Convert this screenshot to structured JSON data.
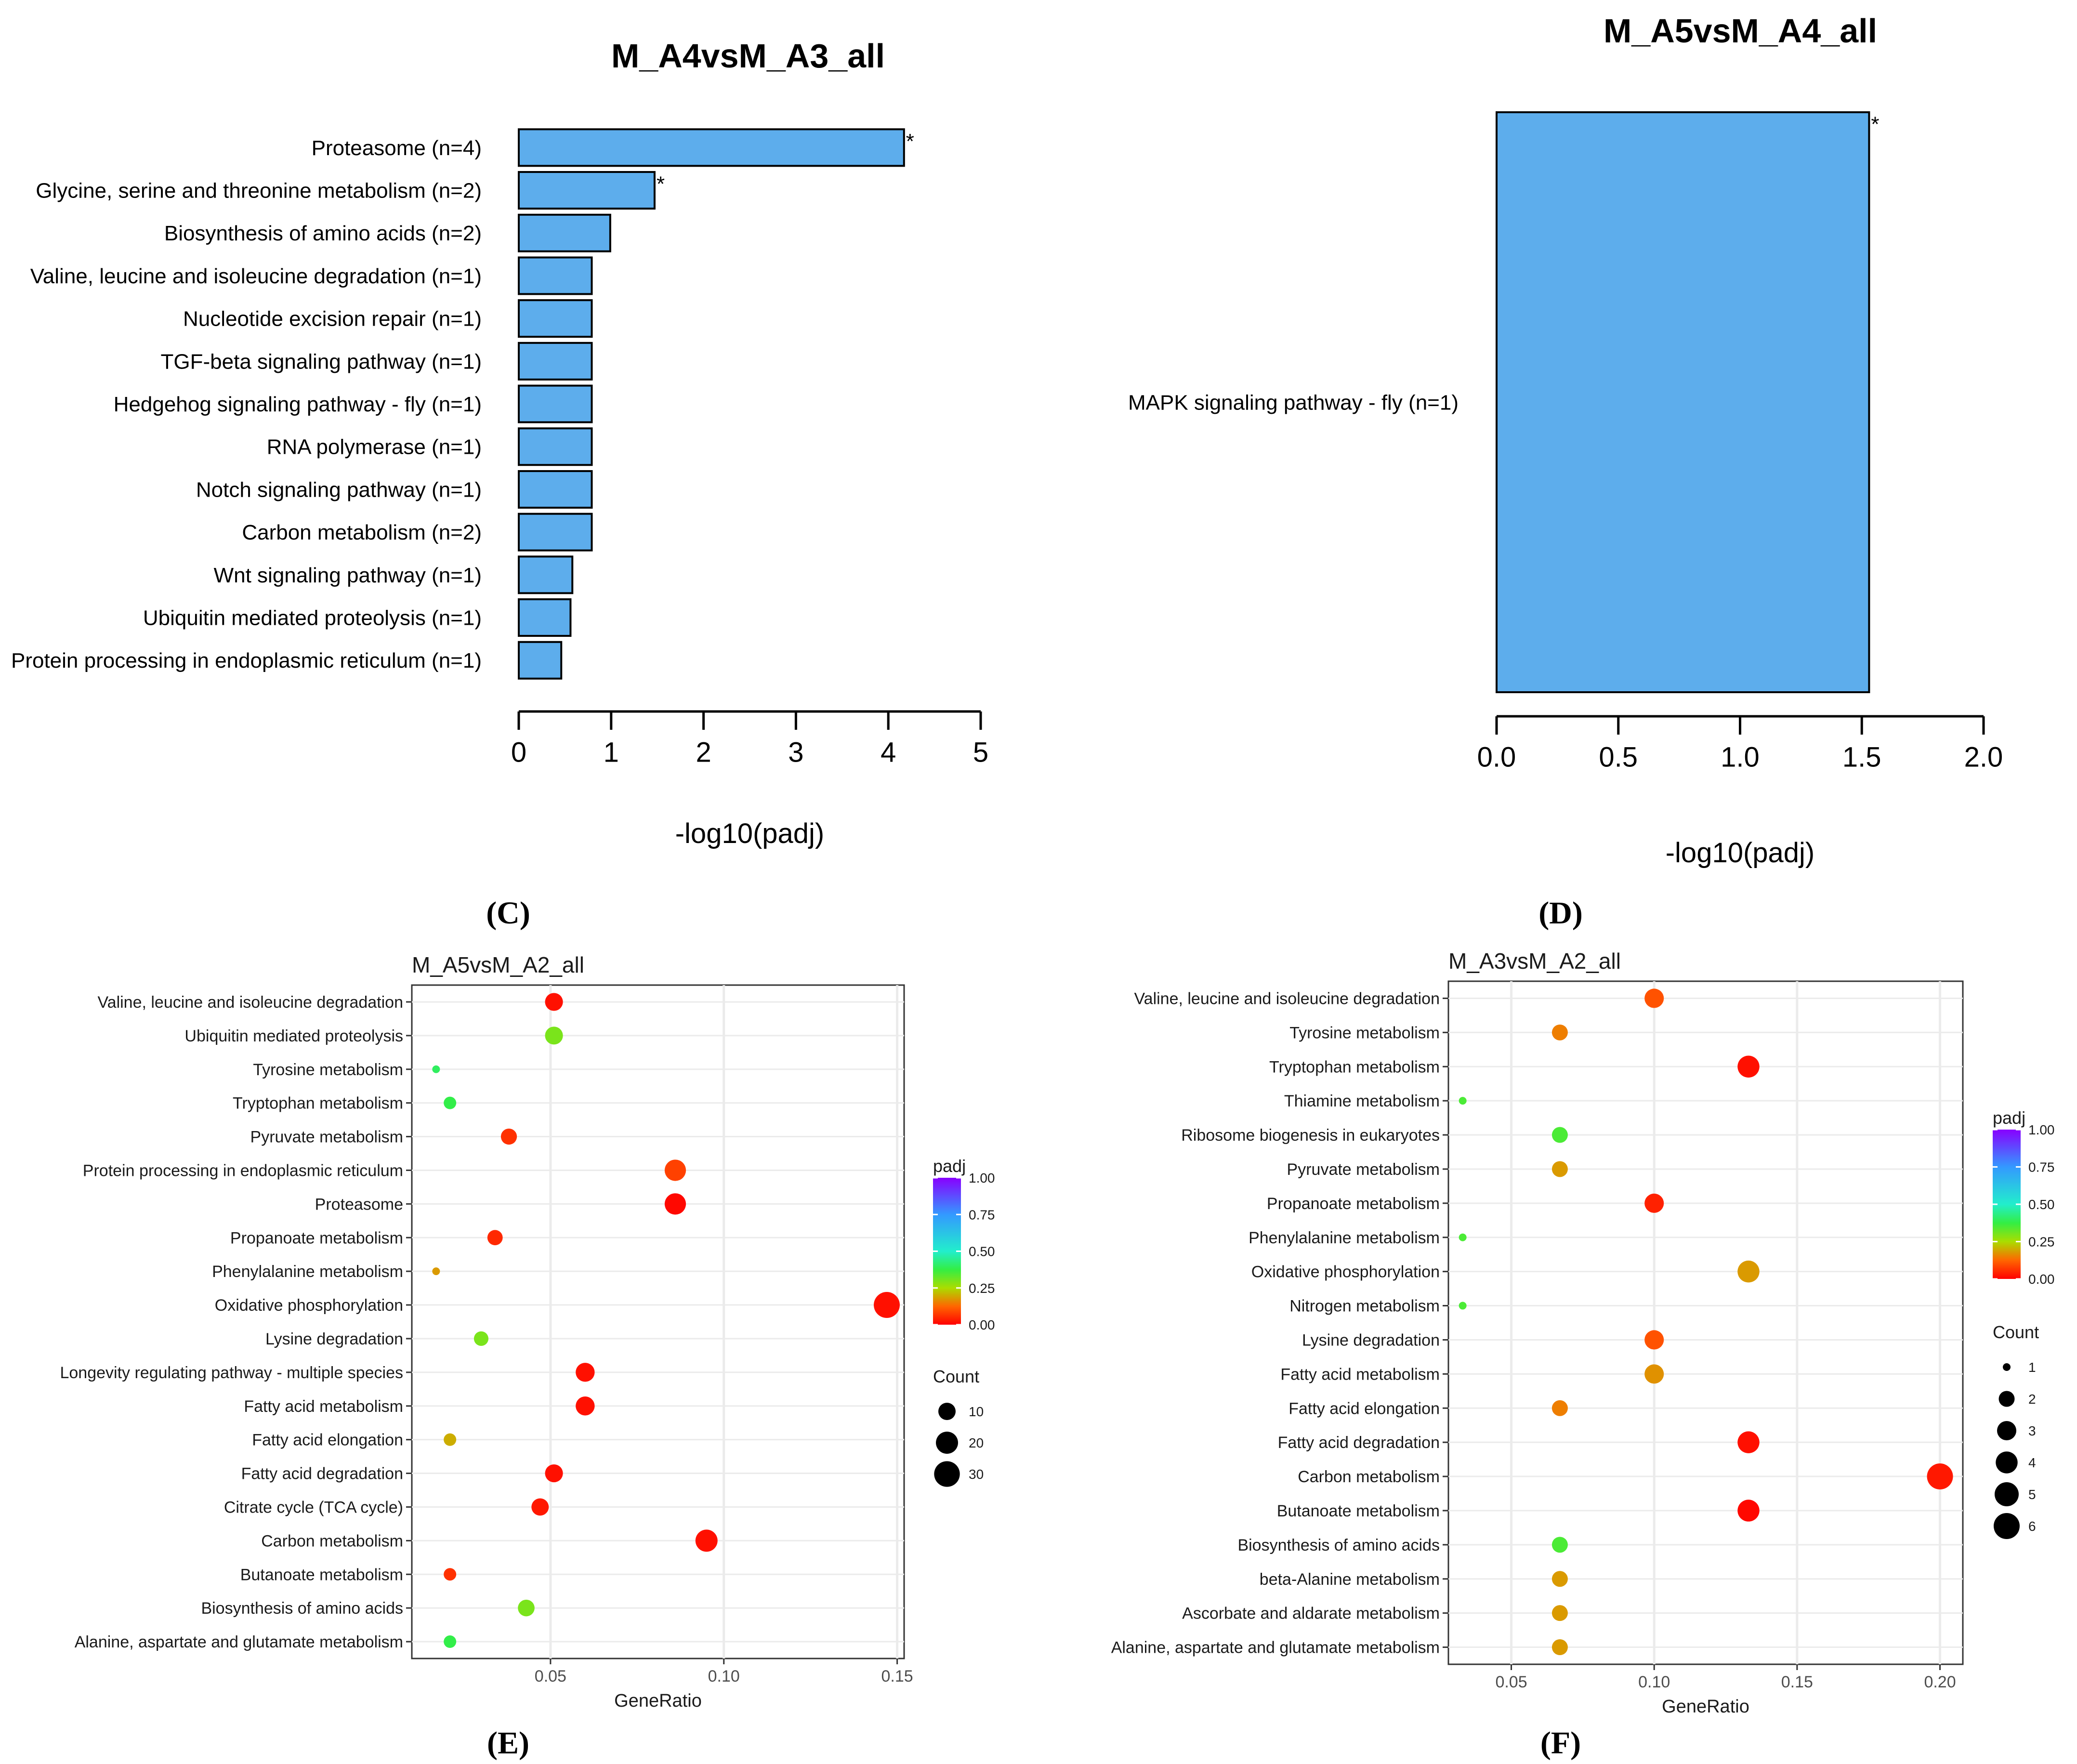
{
  "colors": {
    "bar_fill": "#5DADEC",
    "bar_stroke": "#000000",
    "panel_bg": "#ffffff",
    "grid": "#ebebeb",
    "text": "#1a1a1a",
    "axis_text": "#4d4d4d"
  },
  "chart_data": [
    {
      "id": "C",
      "panel_label": "(C)",
      "type": "bar",
      "orientation": "horizontal",
      "title": "M_A4vsM_A3_all",
      "xlabel": "-log10(padj)",
      "xlim": [
        0,
        5
      ],
      "xticks": [
        "0",
        "1",
        "2",
        "3",
        "4",
        "5"
      ],
      "xtick_values": [
        0,
        1,
        2,
        3,
        4,
        5
      ],
      "categories": [
        "Proteasome (n=4)",
        "Glycine, serine and threonine metabolism (n=2)",
        "Biosynthesis of amino acids (n=2)",
        "Valine, leucine and isoleucine degradation (n=1)",
        "Nucleotide excision repair (n=1)",
        "TGF-beta signaling pathway (n=1)",
        "Hedgehog signaling pathway - fly (n=1)",
        "RNA polymerase (n=1)",
        "Notch signaling pathway (n=1)",
        "Carbon metabolism (n=2)",
        "Wnt signaling pathway (n=1)",
        "Ubiquitin mediated proteolysis (n=1)",
        "Protein processing in endoplasmic reticulum (n=1)"
      ],
      "values": [
        4.17,
        1.47,
        0.99,
        0.79,
        0.79,
        0.79,
        0.79,
        0.79,
        0.79,
        0.79,
        0.58,
        0.56,
        0.46
      ],
      "annotations": [
        "*",
        "*",
        "",
        "",
        "",
        "",
        "",
        "",
        "",
        "",
        "",
        "",
        ""
      ]
    },
    {
      "id": "D",
      "panel_label": "(D)",
      "type": "bar",
      "orientation": "horizontal",
      "title": "M_A5vsM_A4_all",
      "xlabel": "-log10(padj)",
      "xlim": [
        0,
        2
      ],
      "xticks": [
        "0.0",
        "0.5",
        "1.0",
        "1.5",
        "2.0"
      ],
      "xtick_values": [
        0,
        0.5,
        1.0,
        1.5,
        2.0
      ],
      "categories": [
        "MAPK signaling pathway - fly (n=1)"
      ],
      "values": [
        1.53
      ],
      "annotations": [
        "*"
      ]
    },
    {
      "id": "E",
      "panel_label": "(E)",
      "type": "scatter",
      "title": "M_A5vsM_A2_all",
      "xlabel": "GeneRatio",
      "xlim": [
        0.01,
        0.152
      ],
      "xticks": [
        "0.05",
        "0.10",
        "0.15"
      ],
      "xtick_values": [
        0.05,
        0.1,
        0.15
      ],
      "categories": [
        "Valine, leucine and isoleucine degradation",
        "Ubiquitin mediated proteolysis",
        "Tyrosine metabolism",
        "Tryptophan metabolism",
        "Pyruvate metabolism",
        "Protein processing in endoplasmic reticulum",
        "Proteasome",
        "Propanoate metabolism",
        "Phenylalanine metabolism",
        "Oxidative phosphorylation",
        "Lysine degradation",
        "Longevity regulating pathway - multiple species",
        "Fatty acid metabolism",
        "Fatty acid elongation",
        "Fatty acid degradation",
        "Citrate cycle (TCA cycle)",
        "Carbon metabolism",
        "Butanoate metabolism",
        "Biosynthesis of amino acids",
        "Alanine, aspartate and glutamate metabolism"
      ],
      "points": [
        {
          "x": 0.051,
          "count": 11,
          "padj": 0.02
        },
        {
          "x": 0.051,
          "count": 11,
          "padj": 0.3
        },
        {
          "x": 0.017,
          "count": 2,
          "padj": 0.4
        },
        {
          "x": 0.021,
          "count": 4,
          "padj": 0.38
        },
        {
          "x": 0.038,
          "count": 8,
          "padj": 0.06
        },
        {
          "x": 0.086,
          "count": 18,
          "padj": 0.08
        },
        {
          "x": 0.086,
          "count": 18,
          "padj": 0.01
        },
        {
          "x": 0.034,
          "count": 7,
          "padj": 0.05
        },
        {
          "x": 0.017,
          "count": 2,
          "padj": 0.18
        },
        {
          "x": 0.147,
          "count": 31,
          "padj": 0.02
        },
        {
          "x": 0.03,
          "count": 6,
          "padj": 0.3
        },
        {
          "x": 0.06,
          "count": 13,
          "padj": 0.02
        },
        {
          "x": 0.06,
          "count": 13,
          "padj": 0.02
        },
        {
          "x": 0.021,
          "count": 4,
          "padj": 0.2
        },
        {
          "x": 0.051,
          "count": 11,
          "padj": 0.02
        },
        {
          "x": 0.047,
          "count": 10,
          "padj": 0.03
        },
        {
          "x": 0.095,
          "count": 20,
          "padj": 0.02
        },
        {
          "x": 0.021,
          "count": 4,
          "padj": 0.06
        },
        {
          "x": 0.043,
          "count": 9,
          "padj": 0.3
        },
        {
          "x": 0.021,
          "count": 4,
          "padj": 0.38
        }
      ],
      "color_legend": {
        "title": "padj",
        "ticks": [
          "1.00",
          "0.75",
          "0.50",
          "0.25",
          "0.00"
        ],
        "tick_values": [
          1.0,
          0.75,
          0.5,
          0.25,
          0.0
        ]
      },
      "size_legend": {
        "title": "Count",
        "labels": [
          "10",
          "20",
          "30"
        ],
        "values": [
          10,
          20,
          30
        ],
        "min_count": 2,
        "max_count": 31
      }
    },
    {
      "id": "F",
      "panel_label": "(F)",
      "type": "scatter",
      "title": "M_A3vsM_A2_all",
      "xlabel": "GeneRatio",
      "xlim": [
        0.028,
        0.208
      ],
      "xticks": [
        "0.05",
        "0.10",
        "0.15",
        "0.20"
      ],
      "xtick_values": [
        0.05,
        0.1,
        0.15,
        0.2
      ],
      "categories": [
        "Valine, leucine and isoleucine degradation",
        "Tyrosine metabolism",
        "Tryptophan metabolism",
        "Thiamine metabolism",
        "Ribosome biogenesis in eukaryotes",
        "Pyruvate metabolism",
        "Propanoate metabolism",
        "Phenylalanine metabolism",
        "Oxidative phosphorylation",
        "Nitrogen metabolism",
        "Lysine degradation",
        "Fatty acid metabolism",
        "Fatty acid elongation",
        "Fatty acid degradation",
        "Carbon metabolism",
        "Butanoate metabolism",
        "Biosynthesis of amino acids",
        "beta-Alanine metabolism",
        "Ascorbate and aldarate metabolism",
        "Alanine, aspartate and glutamate metabolism"
      ],
      "points": [
        {
          "x": 0.1,
          "count": 3,
          "padj": 0.1
        },
        {
          "x": 0.067,
          "count": 2,
          "padj": 0.15
        },
        {
          "x": 0.133,
          "count": 4,
          "padj": 0.02
        },
        {
          "x": 0.033,
          "count": 1,
          "padj": 0.35
        },
        {
          "x": 0.067,
          "count": 2,
          "padj": 0.35
        },
        {
          "x": 0.067,
          "count": 2,
          "padj": 0.18
        },
        {
          "x": 0.1,
          "count": 3,
          "padj": 0.04
        },
        {
          "x": 0.033,
          "count": 1,
          "padj": 0.35
        },
        {
          "x": 0.133,
          "count": 4,
          "padj": 0.18
        },
        {
          "x": 0.033,
          "count": 1,
          "padj": 0.35
        },
        {
          "x": 0.1,
          "count": 3,
          "padj": 0.1
        },
        {
          "x": 0.1,
          "count": 3,
          "padj": 0.17
        },
        {
          "x": 0.067,
          "count": 2,
          "padj": 0.15
        },
        {
          "x": 0.133,
          "count": 4,
          "padj": 0.02
        },
        {
          "x": 0.2,
          "count": 6,
          "padj": 0.03
        },
        {
          "x": 0.133,
          "count": 4,
          "padj": 0.01
        },
        {
          "x": 0.067,
          "count": 2,
          "padj": 0.35
        },
        {
          "x": 0.067,
          "count": 2,
          "padj": 0.18
        },
        {
          "x": 0.067,
          "count": 2,
          "padj": 0.18
        },
        {
          "x": 0.067,
          "count": 2,
          "padj": 0.18
        }
      ],
      "color_legend": {
        "title": "padj",
        "ticks": [
          "1.00",
          "0.75",
          "0.50",
          "0.25",
          "0.00"
        ],
        "tick_values": [
          1.0,
          0.75,
          0.5,
          0.25,
          0.0
        ]
      },
      "size_legend": {
        "title": "Count",
        "labels": [
          "1",
          "2",
          "3",
          "4",
          "5",
          "6"
        ],
        "values": [
          1,
          2,
          3,
          4,
          5,
          6
        ],
        "min_count": 1,
        "max_count": 6
      }
    }
  ]
}
